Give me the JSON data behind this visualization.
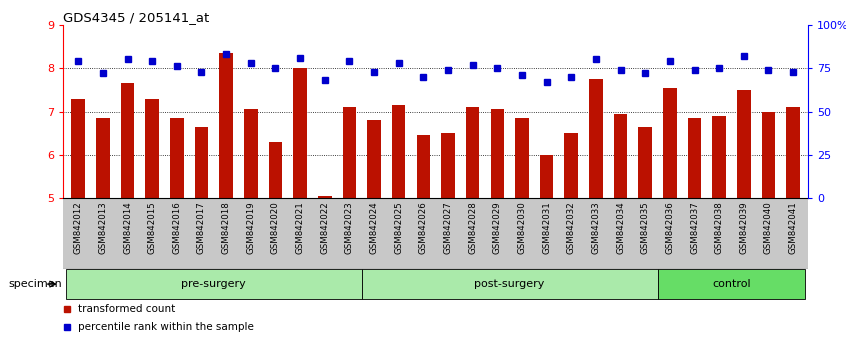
{
  "title": "GDS4345 / 205141_at",
  "samples": [
    "GSM842012",
    "GSM842013",
    "GSM842014",
    "GSM842015",
    "GSM842016",
    "GSM842017",
    "GSM842018",
    "GSM842019",
    "GSM842020",
    "GSM842021",
    "GSM842022",
    "GSM842023",
    "GSM842024",
    "GSM842025",
    "GSM842026",
    "GSM842027",
    "GSM842028",
    "GSM842029",
    "GSM842030",
    "GSM842031",
    "GSM842032",
    "GSM842033",
    "GSM842034",
    "GSM842035",
    "GSM842036",
    "GSM842037",
    "GSM842038",
    "GSM842039",
    "GSM842040",
    "GSM842041"
  ],
  "bar_values": [
    7.3,
    6.85,
    7.65,
    7.3,
    6.85,
    6.65,
    8.35,
    7.05,
    6.3,
    8.0,
    5.05,
    7.1,
    6.8,
    7.15,
    6.45,
    6.5,
    7.1,
    7.05,
    6.85,
    6.0,
    6.5,
    7.75,
    6.95,
    6.65,
    7.55,
    6.85,
    6.9,
    7.5,
    7.0,
    7.1
  ],
  "dot_values": [
    79,
    72,
    80,
    79,
    76,
    73,
    83,
    78,
    75,
    81,
    68,
    79,
    73,
    78,
    70,
    74,
    77,
    75,
    71,
    67,
    70,
    80,
    74,
    72,
    79,
    74,
    75,
    82,
    74,
    73
  ],
  "groups": [
    {
      "label": "pre-surgery",
      "start": 0,
      "end": 11,
      "color": "#aaeaaa"
    },
    {
      "label": "post-surgery",
      "start": 12,
      "end": 23,
      "color": "#aaeaaa"
    },
    {
      "label": "control",
      "start": 24,
      "end": 29,
      "color": "#66dd66"
    }
  ],
  "bar_color": "#BB1100",
  "dot_color": "#0000CC",
  "ylim_left": [
    5,
    9
  ],
  "ylim_right": [
    0,
    100
  ],
  "yticks_left": [
    5,
    6,
    7,
    8,
    9
  ],
  "yticks_right": [
    0,
    25,
    50,
    75,
    100
  ],
  "ytick_labels_right": [
    "0",
    "25",
    "50",
    "75",
    "100%"
  ],
  "grid_values": [
    6,
    7,
    8
  ],
  "xtick_bg_color": "#C8C8C8",
  "group_border_color": "#000000",
  "specimen_label": "specimen"
}
